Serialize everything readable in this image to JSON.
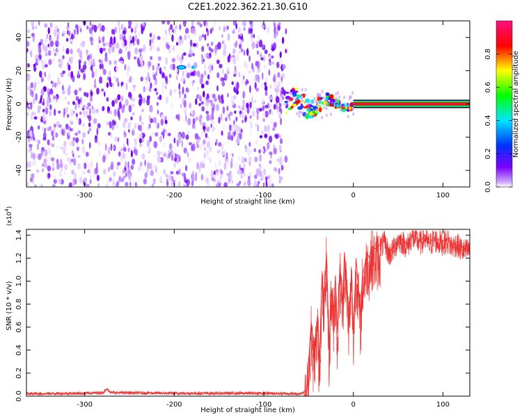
{
  "title": "C2E1.2022.362.21.30.G10",
  "chart_data": [
    {
      "type": "heatmap",
      "xlabel": "Height of straight line (km)",
      "ylabel": "Frequency (Hz)",
      "xlim": [
        -365,
        130
      ],
      "ylim": [
        -50,
        50
      ],
      "xticks": [
        -300,
        -200,
        -100,
        0,
        100
      ],
      "yticks": [
        -40,
        -20,
        0,
        20,
        40
      ],
      "xtick_labels": [
        "-300",
        "-200",
        "-100",
        "0",
        "100"
      ],
      "ytick_labels": [
        "-40",
        "-20",
        "0",
        "20",
        "40"
      ],
      "noise_region_x": [
        -365,
        -75
      ],
      "transition_region_x": [
        -75,
        0
      ],
      "tone_region_x": [
        0,
        130
      ],
      "tone_frequency": 0,
      "bright_spot": {
        "x": -192,
        "y": 22
      },
      "colorbar": {
        "label": "Normalized spectral amplitude",
        "range": [
          0.0,
          1.0
        ],
        "ticks": [
          0.0,
          0.2,
          0.4,
          0.6,
          0.8
        ],
        "tick_labels": [
          "0.0",
          "0.2",
          "0.4",
          "0.6",
          "0.8"
        ],
        "colors": [
          "#ffffff",
          "#7b00ff",
          "#0033ff",
          "#00e5ff",
          "#00ff00",
          "#ffff00",
          "#ff0000",
          "#ff1080"
        ]
      }
    },
    {
      "type": "line",
      "xlabel": "Height of straight line (km)",
      "ylabel": "SNR (10 * v/v)",
      "y_exponent_label": "(x10",
      "y_exponent_power": "4",
      "y_exponent_close": ")",
      "xlim": [
        -365,
        130
      ],
      "ylim": [
        0,
        1.45
      ],
      "xticks": [
        -300,
        -200,
        -100,
        0,
        100
      ],
      "yticks": [
        0.0,
        0.2,
        0.4,
        0.6,
        0.8,
        1.0,
        1.2,
        1.4
      ],
      "xtick_labels": [
        "-300",
        "-200",
        "-100",
        "0",
        "100"
      ],
      "ytick_labels": [
        "0.0",
        "0.2",
        "0.4",
        "0.6",
        "0.8",
        "1.0",
        "1.2",
        "1.4"
      ],
      "color": "#ee3333",
      "series": [
        {
          "x": [
            -365,
            -300,
            -280,
            -275,
            -270,
            -200,
            -100,
            -60,
            -52,
            -50,
            -47,
            -45,
            -42,
            -40,
            -38,
            -35,
            -33,
            -30,
            -27,
            -25,
            -22,
            -20,
            -18,
            -15,
            -12,
            -10,
            -7,
            -5,
            -2,
            0,
            3,
            5,
            8,
            10,
            13,
            15,
            18,
            20,
            25,
            30,
            35,
            40,
            45,
            50,
            55,
            60,
            65,
            70,
            75,
            80,
            85,
            90,
            95,
            100,
            105,
            110,
            115,
            120,
            125,
            130
          ],
          "y": [
            0.02,
            0.025,
            0.03,
            0.06,
            0.03,
            0.025,
            0.025,
            0.02,
            0.05,
            0.3,
            0.65,
            0.4,
            0.5,
            0.7,
            0.3,
            1.05,
            0.8,
            1.25,
            0.4,
            0.95,
            0.75,
            1.05,
            0.55,
            1.15,
            0.8,
            1.25,
            0.95,
            0.7,
            1.1,
            0.55,
            1.2,
            1.0,
            0.7,
            1.05,
            1.15,
            1.25,
            1.2,
            1.3,
            1.28,
            1.32,
            1.35,
            1.25,
            1.3,
            1.38,
            1.36,
            1.32,
            1.4,
            1.38,
            1.35,
            1.4,
            1.33,
            1.38,
            1.36,
            1.35,
            1.37,
            1.32,
            1.34,
            1.3,
            1.28,
            1.3
          ]
        }
      ]
    }
  ]
}
